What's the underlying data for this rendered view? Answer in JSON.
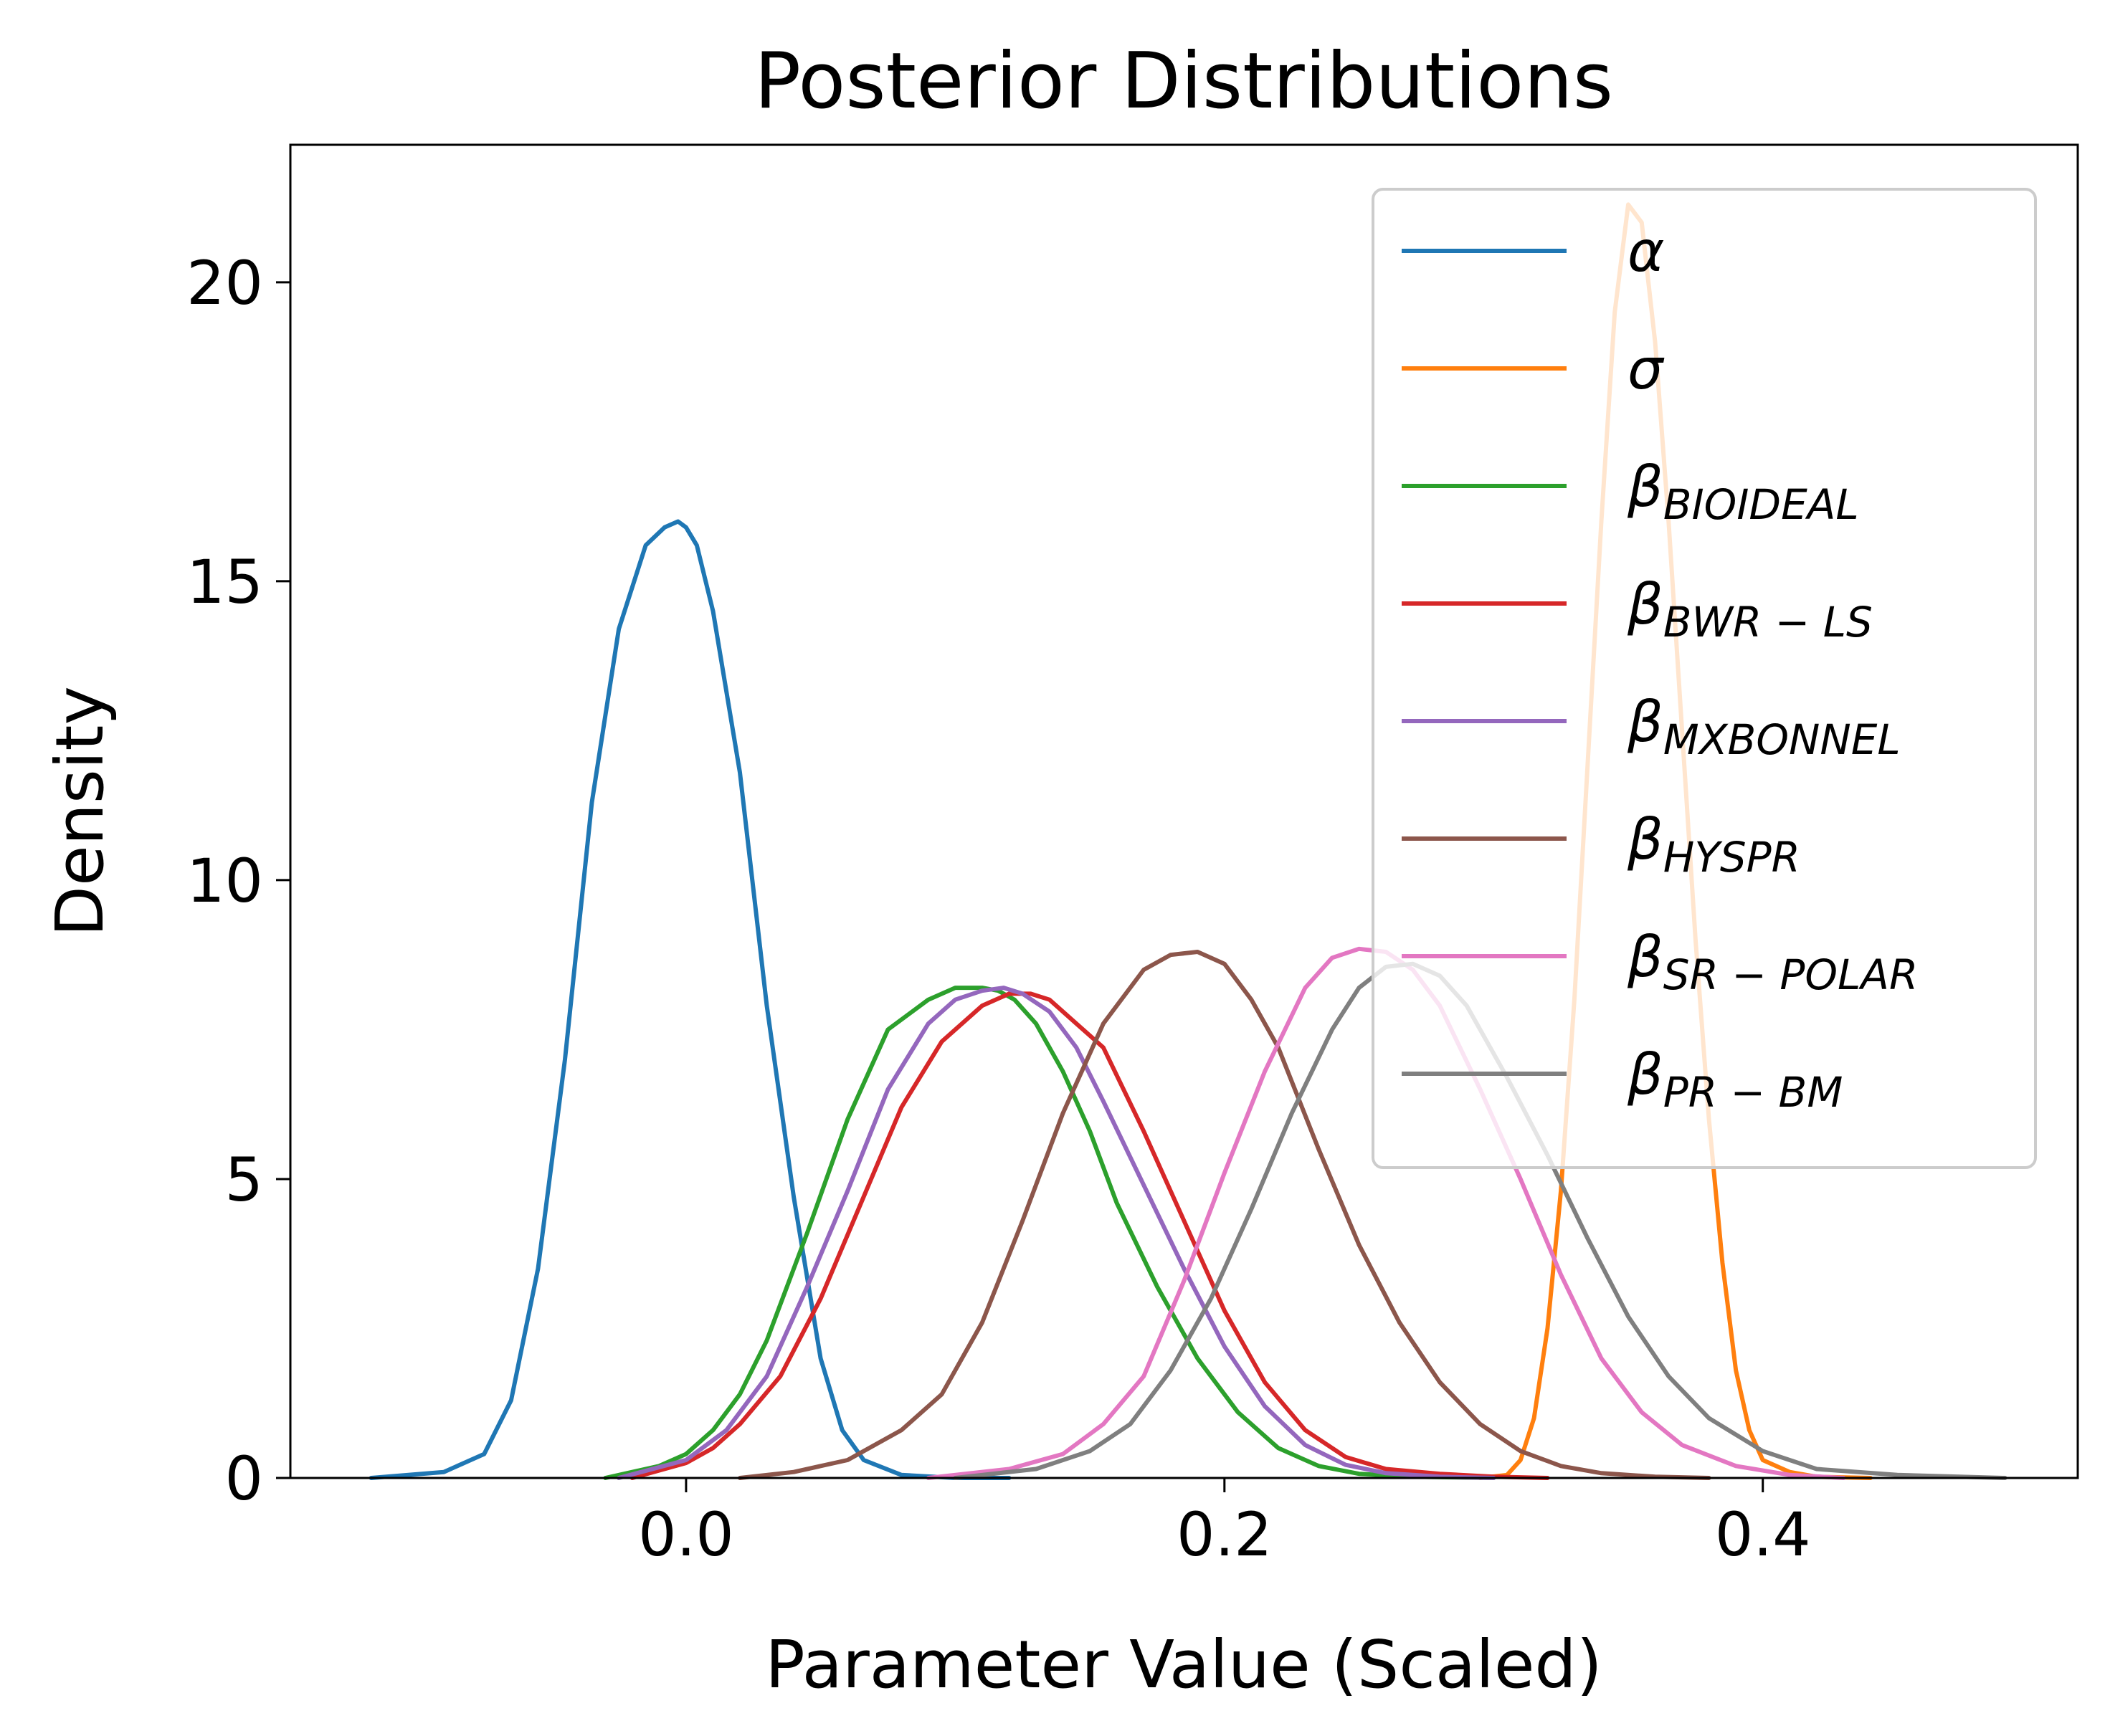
{
  "chart_data": {
    "type": "line",
    "title": "Posterior Distributions",
    "xlabel": "Parameter Value (Scaled)",
    "ylabel": "Density",
    "xlim": [
      -0.147,
      0.517
    ],
    "ylim": [
      0,
      22.3
    ],
    "xticks": [
      0.0,
      0.2,
      0.4
    ],
    "xtick_labels": [
      "0.0",
      "0.2",
      "0.4"
    ],
    "yticks": [
      0,
      5,
      10,
      15,
      20
    ],
    "ytick_labels": [
      "0",
      "5",
      "10",
      "15",
      "20"
    ],
    "grid": false,
    "legend_position": "top-right",
    "series": [
      {
        "name": "α",
        "sym": "α",
        "sub": "",
        "color": "#1f77b4",
        "x": [
          -0.117,
          -0.09,
          -0.075,
          -0.065,
          -0.055,
          -0.045,
          -0.035,
          -0.025,
          -0.015,
          -0.008,
          -0.003,
          0.0,
          0.004,
          0.01,
          0.02,
          0.03,
          0.04,
          0.05,
          0.058,
          0.066,
          0.08,
          0.1,
          0.12
        ],
        "y": [
          0.0,
          0.1,
          0.4,
          1.3,
          3.5,
          7.0,
          11.3,
          14.2,
          15.6,
          15.9,
          16.0,
          15.9,
          15.6,
          14.5,
          11.8,
          7.9,
          4.7,
          2.0,
          0.8,
          0.3,
          0.05,
          0.0,
          0.0
        ]
      },
      {
        "name": "σ",
        "sym": "σ",
        "sub": "",
        "color": "#ff7f0e",
        "x": [
          0.295,
          0.305,
          0.31,
          0.315,
          0.32,
          0.325,
          0.33,
          0.335,
          0.34,
          0.345,
          0.35,
          0.355,
          0.36,
          0.365,
          0.37,
          0.375,
          0.38,
          0.385,
          0.39,
          0.395,
          0.4,
          0.41,
          0.42,
          0.44
        ],
        "y": [
          0.0,
          0.05,
          0.3,
          1.0,
          2.5,
          4.8,
          8.0,
          12.0,
          16.0,
          19.5,
          21.3,
          21.0,
          19.0,
          16.0,
          12.5,
          9.0,
          6.0,
          3.6,
          1.8,
          0.8,
          0.3,
          0.1,
          0.02,
          0.0
        ]
      },
      {
        "name": "β BIOIDEAL",
        "sym": "β",
        "sub": "BIOIDEAL",
        "color": "#2ca02c",
        "x": [
          -0.03,
          -0.01,
          0.0,
          0.01,
          0.02,
          0.03,
          0.045,
          0.06,
          0.075,
          0.09,
          0.1,
          0.11,
          0.116,
          0.122,
          0.13,
          0.14,
          0.15,
          0.16,
          0.175,
          0.19,
          0.205,
          0.22,
          0.235,
          0.25,
          0.27,
          0.3
        ],
        "y": [
          0.0,
          0.2,
          0.4,
          0.8,
          1.4,
          2.3,
          4.1,
          6.0,
          7.5,
          8.0,
          8.2,
          8.2,
          8.15,
          8.0,
          7.6,
          6.8,
          5.8,
          4.6,
          3.2,
          2.0,
          1.1,
          0.5,
          0.2,
          0.07,
          0.02,
          0.0
        ]
      },
      {
        "name": "β BWR−LS",
        "sym": "β",
        "sub": "BWR − LS",
        "color": "#d62728",
        "x": [
          -0.02,
          0.0,
          0.01,
          0.02,
          0.035,
          0.05,
          0.065,
          0.08,
          0.095,
          0.11,
          0.12,
          0.128,
          0.135,
          0.145,
          0.155,
          0.17,
          0.185,
          0.2,
          0.215,
          0.23,
          0.245,
          0.26,
          0.28,
          0.3,
          0.32
        ],
        "y": [
          0.0,
          0.25,
          0.5,
          0.9,
          1.7,
          3.0,
          4.6,
          6.2,
          7.3,
          7.9,
          8.1,
          8.1,
          8.0,
          7.6,
          7.2,
          5.8,
          4.3,
          2.8,
          1.6,
          0.8,
          0.35,
          0.15,
          0.07,
          0.02,
          0.0
        ]
      },
      {
        "name": "β MXBONNEL",
        "sym": "β",
        "sub": "MXBONNEL",
        "color": "#9467bd",
        "x": [
          -0.025,
          0.0,
          0.015,
          0.03,
          0.045,
          0.06,
          0.075,
          0.09,
          0.1,
          0.11,
          0.118,
          0.125,
          0.135,
          0.145,
          0.155,
          0.17,
          0.185,
          0.2,
          0.215,
          0.23,
          0.245,
          0.26,
          0.28,
          0.3
        ],
        "y": [
          0.0,
          0.3,
          0.8,
          1.7,
          3.2,
          4.8,
          6.5,
          7.6,
          8.0,
          8.15,
          8.2,
          8.1,
          7.8,
          7.2,
          6.3,
          4.9,
          3.5,
          2.2,
          1.2,
          0.55,
          0.22,
          0.08,
          0.02,
          0.0
        ]
      },
      {
        "name": "β HYSPR",
        "sym": "β",
        "sub": "HYSPR",
        "color": "#8c564b",
        "x": [
          0.02,
          0.04,
          0.06,
          0.08,
          0.095,
          0.11,
          0.125,
          0.14,
          0.155,
          0.17,
          0.18,
          0.19,
          0.2,
          0.21,
          0.22,
          0.235,
          0.25,
          0.265,
          0.28,
          0.295,
          0.31,
          0.325,
          0.34,
          0.36,
          0.38
        ],
        "y": [
          0.0,
          0.1,
          0.3,
          0.8,
          1.4,
          2.6,
          4.3,
          6.1,
          7.6,
          8.5,
          8.75,
          8.8,
          8.6,
          8.0,
          7.2,
          5.5,
          3.9,
          2.6,
          1.6,
          0.9,
          0.45,
          0.2,
          0.08,
          0.02,
          0.0
        ]
      },
      {
        "name": "β SR−POLAR",
        "sym": "β",
        "sub": "SR − POLAR",
        "color": "#e377c2",
        "x": [
          0.09,
          0.12,
          0.14,
          0.155,
          0.17,
          0.185,
          0.2,
          0.215,
          0.23,
          0.24,
          0.25,
          0.26,
          0.27,
          0.28,
          0.295,
          0.31,
          0.325,
          0.34,
          0.355,
          0.37,
          0.39,
          0.41,
          0.43
        ],
        "y": [
          0.0,
          0.15,
          0.4,
          0.9,
          1.7,
          3.3,
          5.1,
          6.8,
          8.2,
          8.7,
          8.85,
          8.8,
          8.5,
          7.9,
          6.5,
          5.0,
          3.4,
          2.0,
          1.1,
          0.55,
          0.2,
          0.05,
          0.0
        ]
      },
      {
        "name": "β PR−BM",
        "sym": "β",
        "sub": "PR − BM",
        "color": "#7f7f7f",
        "x": [
          0.1,
          0.13,
          0.15,
          0.165,
          0.18,
          0.195,
          0.21,
          0.225,
          0.24,
          0.25,
          0.26,
          0.27,
          0.28,
          0.29,
          0.305,
          0.32,
          0.335,
          0.35,
          0.365,
          0.38,
          0.4,
          0.42,
          0.45,
          0.49
        ],
        "y": [
          0.0,
          0.15,
          0.45,
          0.9,
          1.8,
          3.0,
          4.5,
          6.1,
          7.5,
          8.2,
          8.55,
          8.6,
          8.4,
          7.9,
          6.7,
          5.4,
          4.0,
          2.7,
          1.7,
          1.0,
          0.45,
          0.15,
          0.05,
          0.0
        ]
      }
    ]
  }
}
